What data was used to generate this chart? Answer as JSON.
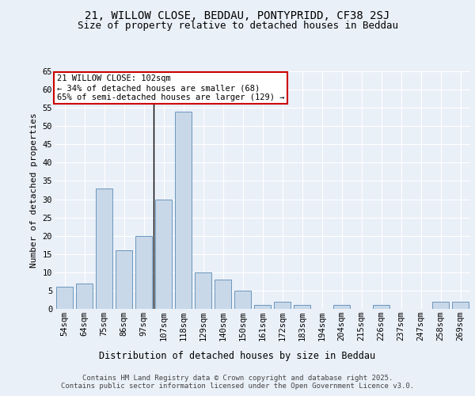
{
  "title1": "21, WILLOW CLOSE, BEDDAU, PONTYPRIDD, CF38 2SJ",
  "title2": "Size of property relative to detached houses in Beddau",
  "xlabel": "Distribution of detached houses by size in Beddau",
  "ylabel": "Number of detached properties",
  "categories": [
    "54sqm",
    "64sqm",
    "75sqm",
    "86sqm",
    "97sqm",
    "107sqm",
    "118sqm",
    "129sqm",
    "140sqm",
    "150sqm",
    "161sqm",
    "172sqm",
    "183sqm",
    "194sqm",
    "204sqm",
    "215sqm",
    "226sqm",
    "237sqm",
    "247sqm",
    "258sqm",
    "269sqm"
  ],
  "values": [
    6,
    7,
    33,
    16,
    20,
    30,
    54,
    10,
    8,
    5,
    1,
    2,
    1,
    0,
    1,
    0,
    1,
    0,
    0,
    2,
    2
  ],
  "bar_color": "#c8d8e8",
  "bar_edge_color": "#5a8ab5",
  "annotation_box_text": "21 WILLOW CLOSE: 102sqm\n← 34% of detached houses are smaller (68)\n65% of semi-detached houses are larger (129) →",
  "annotation_box_color": "#ffffff",
  "annotation_box_edge_color": "#cc0000",
  "ylim": [
    0,
    65
  ],
  "yticks": [
    0,
    5,
    10,
    15,
    20,
    25,
    30,
    35,
    40,
    45,
    50,
    55,
    60,
    65
  ],
  "bg_color": "#eaf0f8",
  "plot_bg_color": "#eaf0f8",
  "grid_color": "#ffffff",
  "footer_text": "Contains HM Land Registry data © Crown copyright and database right 2025.\nContains public sector information licensed under the Open Government Licence v3.0.",
  "vline_x_index": 5,
  "title1_fontsize": 10,
  "title2_fontsize": 9,
  "xlabel_fontsize": 8.5,
  "ylabel_fontsize": 8,
  "tick_fontsize": 7.5,
  "footer_fontsize": 6.5,
  "ann_fontsize": 7.5
}
